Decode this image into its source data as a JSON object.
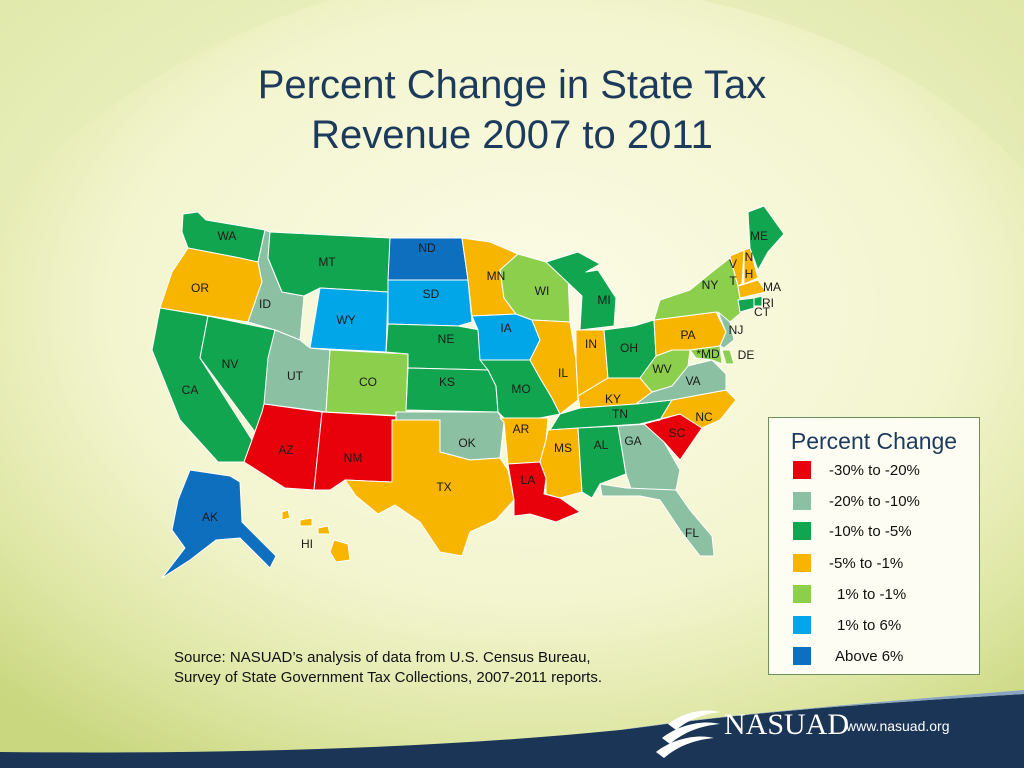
{
  "slide": {
    "title_line1": "Percent Change in State Tax",
    "title_line2": "Revenue 2007 to 2011"
  },
  "legend": {
    "title": "Percent Change",
    "items": [
      {
        "label": "-30% to -20%",
        "color": "#e8000b"
      },
      {
        "label": "-20% to -10%",
        "color": "#8cc0a2"
      },
      {
        "label": "-10% to -5%",
        "color": "#12a54f"
      },
      {
        "label": "-5% to -1%",
        "color": "#f7b500"
      },
      {
        "label": "1% to -1%",
        "color": "#8ccf4d"
      },
      {
        "label": "1% to 6%",
        "color": "#00a6e8"
      },
      {
        "label": "Above 6%",
        "color": "#0d6fbe"
      }
    ]
  },
  "source": {
    "line1": "Source: NASUAD’s analysis of data from U.S. Census Bureau,",
    "line2": "Survey of State Government  Tax Collections, 2007-2011 reports."
  },
  "footer": {
    "logo_text": "NASUAD",
    "url": "www.nasuad.org"
  },
  "states": [
    {
      "abbr": "WA",
      "category": 2
    },
    {
      "abbr": "OR",
      "category": 3
    },
    {
      "abbr": "CA",
      "category": 2
    },
    {
      "abbr": "NV",
      "category": 2
    },
    {
      "abbr": "ID",
      "category": 1
    },
    {
      "abbr": "MT",
      "category": 2
    },
    {
      "abbr": "WY",
      "category": 5
    },
    {
      "abbr": "UT",
      "category": 1
    },
    {
      "abbr": "AZ",
      "category": 0
    },
    {
      "abbr": "CO",
      "category": 4
    },
    {
      "abbr": "NM",
      "category": 0
    },
    {
      "abbr": "ND",
      "category": 6
    },
    {
      "abbr": "SD",
      "category": 5
    },
    {
      "abbr": "NE",
      "category": 2
    },
    {
      "abbr": "KS",
      "category": 2
    },
    {
      "abbr": "OK",
      "category": 1
    },
    {
      "abbr": "TX",
      "category": 3
    },
    {
      "abbr": "MN",
      "category": 3
    },
    {
      "abbr": "IA",
      "category": 5
    },
    {
      "abbr": "MO",
      "category": 2
    },
    {
      "abbr": "AR",
      "category": 3
    },
    {
      "abbr": "LA",
      "category": 0
    },
    {
      "abbr": "WI",
      "category": 4
    },
    {
      "abbr": "IL",
      "category": 3
    },
    {
      "abbr": "MI",
      "category": 2
    },
    {
      "abbr": "IN",
      "category": 3
    },
    {
      "abbr": "OH",
      "category": 2
    },
    {
      "abbr": "KY",
      "category": 3
    },
    {
      "abbr": "TN",
      "category": 2
    },
    {
      "abbr": "MS",
      "category": 3
    },
    {
      "abbr": "AL",
      "category": 2
    },
    {
      "abbr": "GA",
      "category": 1
    },
    {
      "abbr": "FL",
      "category": 1
    },
    {
      "abbr": "SC",
      "category": 0
    },
    {
      "abbr": "NC",
      "category": 3
    },
    {
      "abbr": "VA",
      "category": 1
    },
    {
      "abbr": "WV",
      "category": 4
    },
    {
      "abbr": "PA",
      "category": 3
    },
    {
      "abbr": "NY",
      "category": 4
    },
    {
      "abbr": "VT",
      "category": 3
    },
    {
      "abbr": "NH",
      "category": 3
    },
    {
      "abbr": "ME",
      "category": 2
    },
    {
      "abbr": "MA",
      "category": 3
    },
    {
      "abbr": "RI",
      "category": 2
    },
    {
      "abbr": "CT",
      "category": 2
    },
    {
      "abbr": "NJ",
      "category": 1
    },
    {
      "abbr": "DE",
      "category": 4
    },
    {
      "abbr": "MD",
      "category": 4
    },
    {
      "abbr": "AK",
      "category": 6
    },
    {
      "abbr": "HI",
      "category": 3
    }
  ],
  "state_labels": {
    "WA": "WA",
    "OR": "OR",
    "CA": "CA",
    "NV": "NV",
    "ID": "ID",
    "MT": "MT",
    "WY": "WY",
    "UT": "UT",
    "AZ": "AZ",
    "CO": "CO",
    "NM": "NM",
    "ND": "ND",
    "SD": "SD",
    "NE": "NE",
    "KS": "KS",
    "OK": "OK",
    "TX": "TX",
    "MN": "MN",
    "IA": "IA",
    "MO": "MO",
    "AR": "AR",
    "LA": "LA",
    "WI": "WI",
    "IL": "IL",
    "MI": "MI",
    "IN": "IN",
    "OH": "OH",
    "KY": "KY",
    "TN": "TN",
    "MS": "MS",
    "AL": "AL",
    "GA": "GA",
    "FL": "FL",
    "SC": "SC",
    "NC": "NC",
    "VA": "VA",
    "WV": "WV",
    "PA": "PA",
    "NY": "NY",
    "VT1": "V",
    "VT2": "T",
    "NH1": "N",
    "NH2": "H",
    "ME": "ME",
    "MA": "MA",
    "RI": "RI",
    "CT": "CT",
    "NJ": "NJ",
    "DE": "DE",
    "MD": "*MD",
    "AK": "AK",
    "HI": "HI"
  }
}
